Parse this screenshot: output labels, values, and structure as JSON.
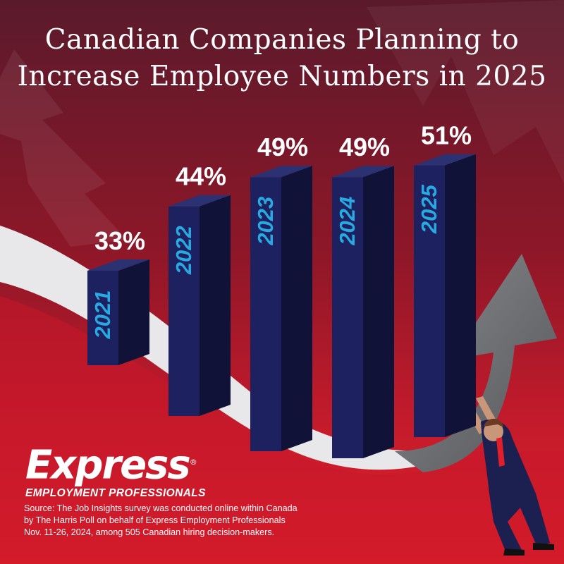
{
  "title": {
    "line1": "Canadian Companies Planning to",
    "line2": "Increase Employee Numbers in 2025"
  },
  "chart_data": {
    "type": "bar",
    "categories": [
      "2021",
      "2022",
      "2023",
      "2024",
      "2025"
    ],
    "values": [
      33,
      44,
      49,
      49,
      51
    ],
    "value_labels": [
      "33%",
      "44%",
      "49%",
      "49%",
      "51%"
    ],
    "unit": "%",
    "title": "Canadian Companies Planning to Increase Employee Numbers in 2025",
    "xlabel": "",
    "ylabel": "",
    "grid": false,
    "legend": "none",
    "colors": {
      "bar_front": "#1e2160",
      "bar_side": "#101238",
      "bar_top": "#2c3172",
      "category_text": "#29a9e1",
      "value_text": "#ffffff"
    }
  },
  "logo": {
    "wordmark": "Express",
    "tagline": "EMPLOYMENT PROFESSIONALS",
    "registered_mark": "®"
  },
  "source": {
    "line1": "Source: The Job Insights survey was conducted online within Canada",
    "line2": "by The Harris Poll on behalf of Express Employment Professionals",
    "line3": "Nov. 11-26, 2024, among 505 Canadian hiring decision-makers."
  },
  "colors": {
    "background_top": "#5a1a2c",
    "background_mid": "#a8182c",
    "background_bright": "#e01f2a",
    "ribbon": "#e8e8ea",
    "arrow": "#6d6e72",
    "suit": "#1c2050"
  }
}
